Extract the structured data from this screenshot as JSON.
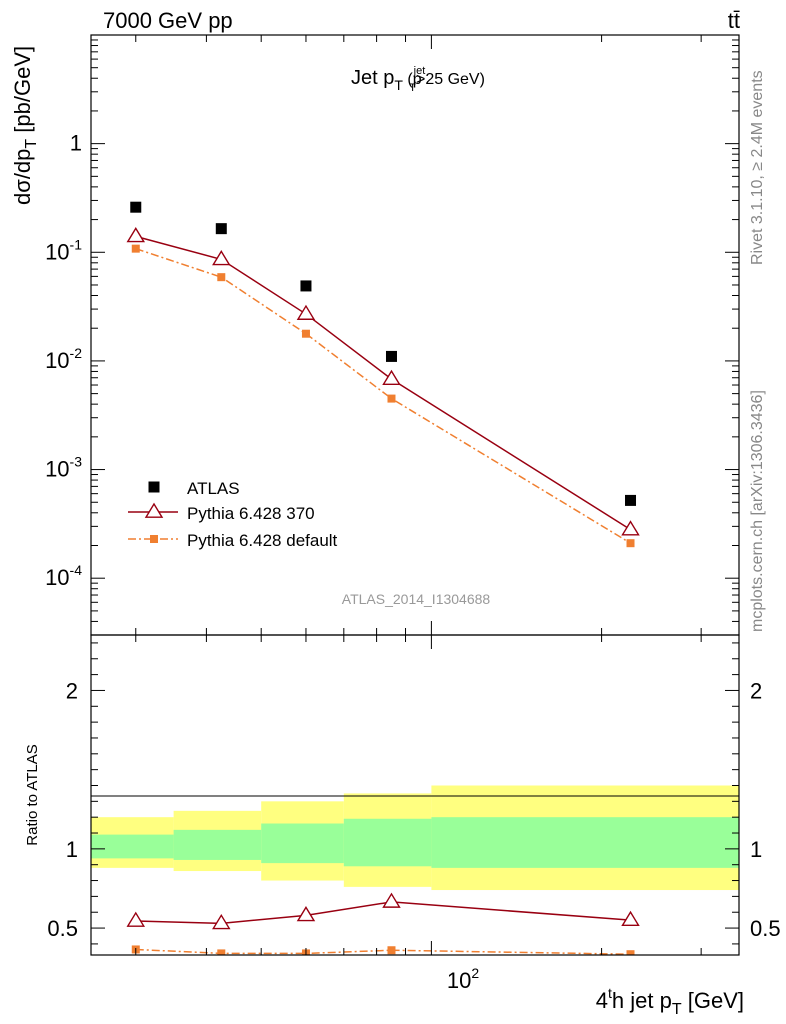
{
  "header": {
    "energy_label": "7000 GeV pp",
    "process_label": "tt̄",
    "side_label_top": "Rivet 3.1.10, ≥ 2.4M events",
    "side_label_bottom": "mcplots.cern.ch [arXiv:1306.3436]",
    "watermark": "ATLAS_2014_I1304688"
  },
  "chart_data": [
    {
      "type": "scatter",
      "title": "Jet p_T (p_T^jet>25 GeV)",
      "xlabel": "4^th jet p_T [GeV]",
      "ylabel": "dσ/dp_T [pb/GeV]",
      "x_scale": "log",
      "y_scale": "log",
      "xlim": [
        25,
        350
      ],
      "ylim": [
        3e-05,
        10
      ],
      "y_ticks": [
        "10^-4",
        "10^-3",
        "10^-2",
        "10^-1",
        "1"
      ],
      "legend_position": "bottom-left",
      "x_bins": [
        [
          25,
          35
        ],
        [
          35,
          50
        ],
        [
          50,
          70
        ],
        [
          70,
          100
        ],
        [
          100,
          350
        ]
      ],
      "series": [
        {
          "name": "ATLAS",
          "style": "markers-square",
          "color": "#000000",
          "x": [
            30,
            42.5,
            60,
            85,
            225
          ],
          "y": [
            0.26,
            0.165,
            0.049,
            0.011,
            0.00052
          ]
        },
        {
          "name": "Pythia 6.428 370",
          "style": "line-open-triangle",
          "color": "#990011",
          "x": [
            30,
            42.5,
            60,
            85,
            225
          ],
          "y": [
            0.14,
            0.086,
            0.027,
            0.0068,
            0.00028
          ]
        },
        {
          "name": "Pythia 6.428 default",
          "style": "dashdot-square",
          "color": "#f07f30",
          "x": [
            30,
            42.5,
            60,
            85,
            225
          ],
          "y": [
            0.108,
            0.059,
            0.0178,
            0.0045,
            0.00021
          ]
        }
      ]
    },
    {
      "type": "line",
      "ylabel": "Ratio to ATLAS",
      "ylim": [
        0.33,
        2.35
      ],
      "y_ticks": [
        0.5,
        1,
        2
      ],
      "x_ticks": [
        "10^2"
      ],
      "bands": [
        {
          "name": "total uncertainty",
          "color": "#ffff80",
          "low": [
            0.88,
            0.86,
            0.8,
            0.76,
            0.74
          ],
          "high": [
            1.2,
            1.24,
            1.3,
            1.35,
            1.4
          ]
        },
        {
          "name": "statistical uncertainty",
          "color": "#99ff99",
          "low": [
            0.94,
            0.93,
            0.91,
            0.89,
            0.88
          ],
          "high": [
            1.09,
            1.12,
            1.16,
            1.19,
            1.2
          ]
        }
      ],
      "series": [
        {
          "name": "Pythia 6.428 370",
          "color": "#990011",
          "x": [
            30,
            42.5,
            60,
            85,
            225
          ],
          "y": [
            0.545,
            0.53,
            0.58,
            0.665,
            0.55
          ]
        },
        {
          "name": "Pythia 6.428 default",
          "color": "#f07f30",
          "x": [
            30,
            42.5,
            60,
            85,
            225
          ],
          "y": [
            0.365,
            0.34,
            0.34,
            0.36,
            0.335
          ]
        }
      ]
    }
  ]
}
